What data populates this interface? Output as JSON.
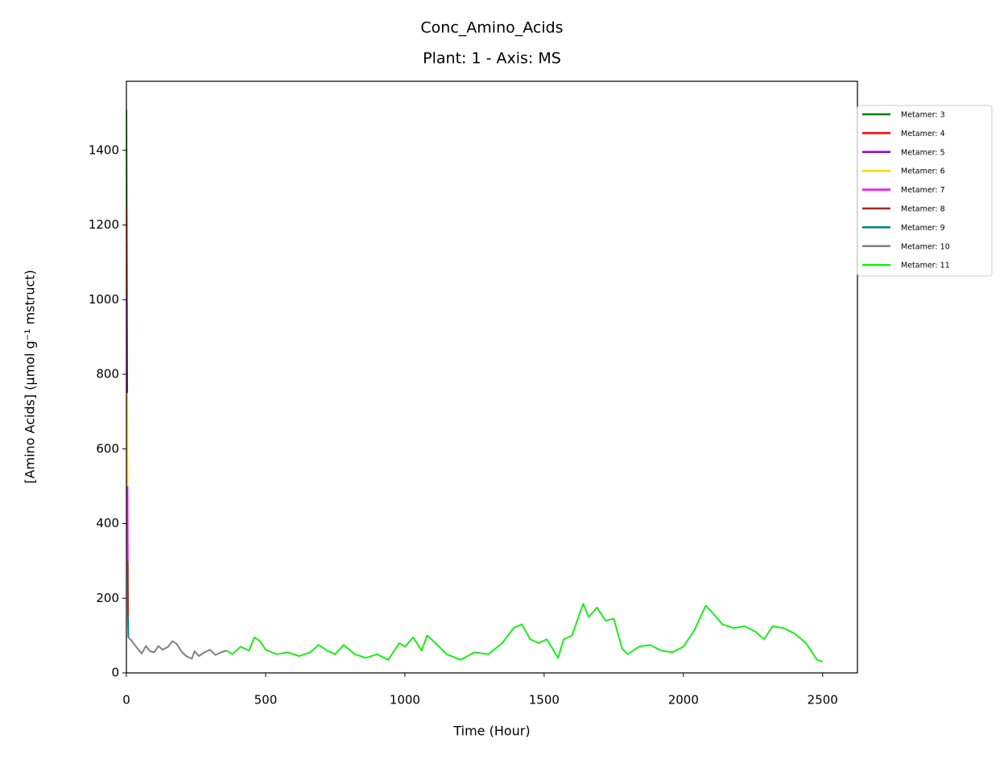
{
  "chart_data": {
    "type": "line",
    "title": "Conc_Amino_Acids",
    "subtitle": "Plant: 1 - Axis: MS",
    "x_label": "Time (Hour)",
    "y_label": "[Amino Acids] (µmol g⁻¹ mstruct)",
    "xlim": [
      0,
      2625
    ],
    "ylim": [
      0,
      1585
    ],
    "xticks": [
      0,
      500,
      1000,
      1500,
      2000,
      2500
    ],
    "yticks": [
      0,
      200,
      400,
      600,
      800,
      1000,
      1200,
      1400
    ],
    "legend": "upper right outside",
    "series": [
      {
        "name": "Metamer: 3",
        "color": "#008000",
        "x": [
          0,
          1
        ],
        "values": [
          1510,
          1250
        ]
      },
      {
        "name": "Metamer: 4",
        "color": "#ff0000",
        "x": [
          1,
          2
        ],
        "values": [
          1250,
          1000
        ]
      },
      {
        "name": "Metamer: 5",
        "color": "#9400d3",
        "x": [
          2,
          3
        ],
        "values": [
          1000,
          750
        ]
      },
      {
        "name": "Metamer: 6",
        "color": "#ffd700",
        "x": [
          3,
          4
        ],
        "values": [
          750,
          500
        ]
      },
      {
        "name": "Metamer: 7",
        "color": "#ff00ff",
        "x": [
          4,
          5
        ],
        "values": [
          500,
          300
        ]
      },
      {
        "name": "Metamer: 8",
        "color": "#a52a2a",
        "x": [
          5,
          6
        ],
        "values": [
          300,
          150
        ]
      },
      {
        "name": "Metamer: 9",
        "color": "#008080",
        "x": [
          6,
          7
        ],
        "values": [
          150,
          95
        ]
      },
      {
        "name": "Metamer: 10",
        "color": "#808080",
        "x": [
          7,
          20,
          40,
          55,
          70,
          85,
          100,
          115,
          130,
          150,
          165,
          180,
          200,
          215,
          235,
          245,
          260,
          280,
          300,
          320,
          340,
          360
        ],
        "values": [
          95,
          85,
          65,
          52,
          72,
          58,
          55,
          72,
          62,
          70,
          85,
          78,
          55,
          45,
          38,
          58,
          45,
          55,
          62,
          48,
          55,
          60
        ]
      },
      {
        "name": "Metamer: 11",
        "color": "#1aee1a",
        "x": [
          360,
          380,
          410,
          440,
          460,
          480,
          500,
          540,
          580,
          620,
          660,
          690,
          720,
          750,
          780,
          820,
          860,
          900,
          940,
          980,
          1000,
          1030,
          1060,
          1080,
          1110,
          1150,
          1200,
          1250,
          1300,
          1350,
          1390,
          1420,
          1450,
          1480,
          1510,
          1550,
          1570,
          1600,
          1640,
          1660,
          1690,
          1720,
          1750,
          1780,
          1800,
          1840,
          1880,
          1920,
          1960,
          2000,
          2040,
          2080,
          2100,
          2140,
          2180,
          2220,
          2260,
          2290,
          2320,
          2360,
          2400,
          2440,
          2480,
          2500
        ],
        "values": [
          60,
          50,
          70,
          60,
          95,
          85,
          62,
          50,
          55,
          45,
          55,
          75,
          60,
          50,
          75,
          50,
          40,
          50,
          35,
          80,
          70,
          95,
          60,
          100,
          80,
          50,
          35,
          55,
          50,
          80,
          120,
          130,
          90,
          80,
          90,
          40,
          90,
          100,
          185,
          150,
          175,
          140,
          145,
          65,
          50,
          70,
          75,
          60,
          55,
          70,
          115,
          180,
          165,
          130,
          120,
          125,
          110,
          90,
          125,
          120,
          105,
          80,
          35,
          30
        ]
      }
    ]
  }
}
